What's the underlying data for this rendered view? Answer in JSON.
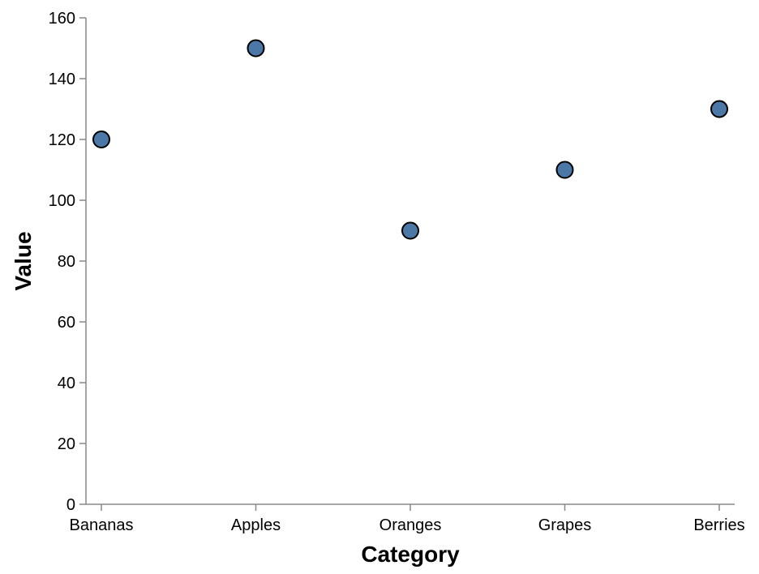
{
  "chart_data": {
    "type": "scatter",
    "title": "",
    "xlabel": "Category",
    "ylabel": "Value",
    "categories": [
      "Bananas",
      "Apples",
      "Oranges",
      "Grapes",
      "Berries"
    ],
    "values": [
      120,
      150,
      90,
      110,
      130
    ],
    "ylim": [
      0,
      160
    ],
    "yticks": [
      0,
      20,
      40,
      60,
      80,
      100,
      120,
      140,
      160
    ],
    "grid": false,
    "legend": "none",
    "colors": {
      "point_fill": "#4c78a8",
      "point_stroke": "#000000",
      "axis": "#888888"
    }
  }
}
